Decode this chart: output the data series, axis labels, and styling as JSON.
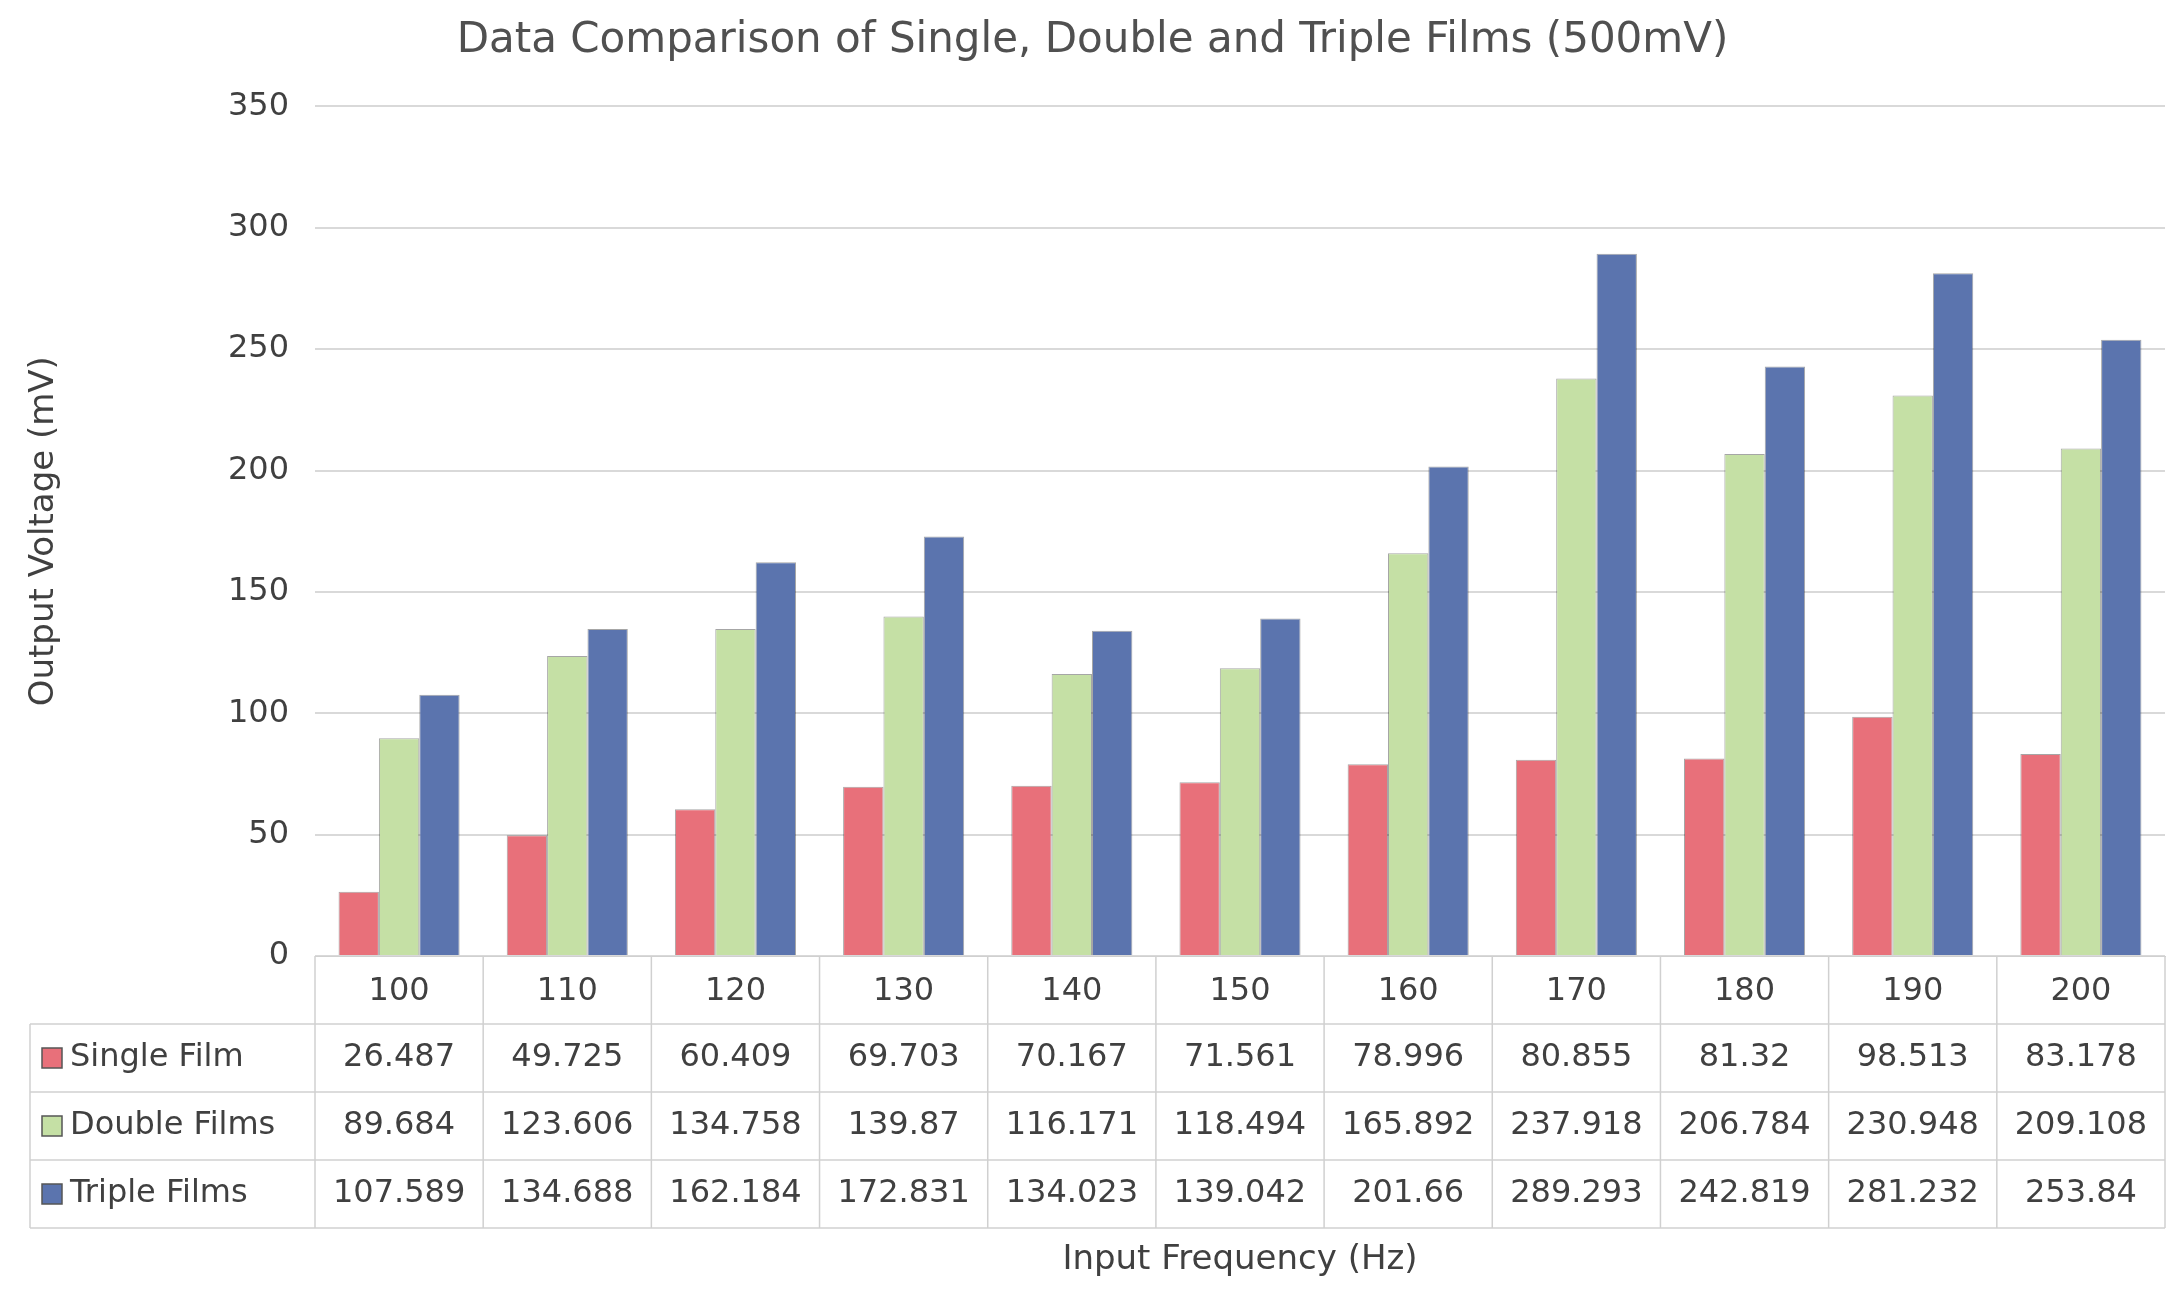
{
  "chart_data": {
    "type": "bar",
    "title": "Data Comparison of Single, Double and Triple Films (500mV)",
    "annotations": [
      "Input Frequency (Hz)"
    ],
    "ylabel": "Output Voltage (mV)",
    "categories": [
      "100",
      "110",
      "120",
      "130",
      "140",
      "150",
      "160",
      "170",
      "180",
      "190",
      "200"
    ],
    "series": [
      {
        "name": "Single Film",
        "color": "#e8707a",
        "values": [
          26.487,
          49.725,
          60.409,
          69.703,
          70.167,
          71.561,
          78.996,
          80.855,
          81.32,
          98.513,
          83.178
        ]
      },
      {
        "name": "Double Films",
        "color": "#c5e0a5",
        "values": [
          89.684,
          123.606,
          134.758,
          139.87,
          116.171,
          118.494,
          165.892,
          237.918,
          206.784,
          230.948,
          209.108
        ]
      },
      {
        "name": "Triple Films",
        "color": "#5b74ae",
        "values": [
          107.589,
          134.688,
          162.184,
          172.831,
          134.023,
          139.042,
          201.66,
          289.293,
          242.819,
          281.232,
          253.84
        ]
      }
    ],
    "ylim": [
      0,
      350
    ],
    "yticks": [
      0,
      50,
      100,
      150,
      200,
      250,
      300,
      350
    ],
    "grid": "y",
    "legend": "bottom",
    "data_labels": true
  }
}
